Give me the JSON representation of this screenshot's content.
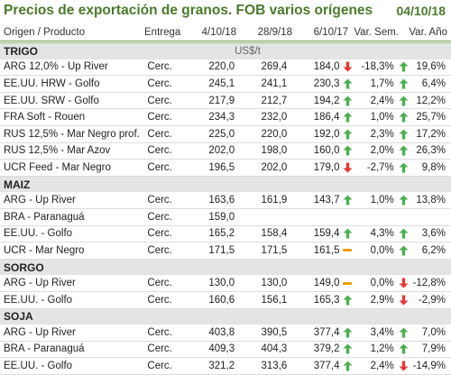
{
  "title": "Precios de exportación de granos. FOB varios orígenes",
  "date": "04/10/18",
  "headers": {
    "origen": "Origen / Producto",
    "entrega": "Entrega",
    "d1": "4/10/18",
    "d2": "28/9/18",
    "d3": "6/10/17",
    "sem": "Var. Sem.",
    "anio": "Var. Año"
  },
  "unit": "US$/t",
  "colors": {
    "up": "#4caf50",
    "down": "#e53935",
    "flat": "#e8a000",
    "accent": "#4a7a2c"
  },
  "sections": [
    {
      "name": "TRIGO",
      "rows": [
        {
          "name": "ARG 12,0% - Up River",
          "entrega": "Cerc.",
          "d1": "220,0",
          "d2": "269,4",
          "d3": "184,0",
          "i1": "down",
          "sem": "-18,3%",
          "i2": "up",
          "anio": "19,6%"
        },
        {
          "name": "EE.UU. HRW - Golfo",
          "entrega": "Cerc.",
          "d1": "245,1",
          "d2": "241,1",
          "d3": "230,3",
          "i1": "up",
          "sem": "1,7%",
          "i2": "up",
          "anio": "6,4%"
        },
        {
          "name": "EE.UU. SRW - Golfo",
          "entrega": "Cerc.",
          "d1": "217,9",
          "d2": "212,7",
          "d3": "194,2",
          "i1": "up",
          "sem": "2,4%",
          "i2": "up",
          "anio": "12,2%"
        },
        {
          "name": "FRA Soft - Rouen",
          "entrega": "Cerc.",
          "d1": "234,3",
          "d2": "232,0",
          "d3": "186,4",
          "i1": "up",
          "sem": "1,0%",
          "i2": "up",
          "anio": "25,7%"
        },
        {
          "name": "RUS 12,5% - Mar Negro prof.",
          "entrega": "Cerc.",
          "d1": "225,0",
          "d2": "220,0",
          "d3": "192,0",
          "i1": "up",
          "sem": "2,3%",
          "i2": "up",
          "anio": "17,2%"
        },
        {
          "name": "RUS 12,5% - Mar Azov",
          "entrega": "Cerc.",
          "d1": "202,0",
          "d2": "198,0",
          "d3": "160,0",
          "i1": "up",
          "sem": "2,0%",
          "i2": "up",
          "anio": "26,3%"
        },
        {
          "name": "UCR Feed - Mar Negro",
          "entrega": "Cerc.",
          "d1": "196,5",
          "d2": "202,0",
          "d3": "179,0",
          "i1": "down",
          "sem": "-2,7%",
          "i2": "up",
          "anio": "9,8%"
        }
      ]
    },
    {
      "name": "MAIZ",
      "rows": [
        {
          "name": "ARG - Up River",
          "entrega": "Cerc.",
          "d1": "163,6",
          "d2": "161,9",
          "d3": "143,7",
          "i1": "up",
          "sem": "1,0%",
          "i2": "up",
          "anio": "13,8%"
        },
        {
          "name": "BRA - Paranaguá",
          "entrega": "Cerc.",
          "d1": "159,0",
          "d2": "",
          "d3": "",
          "i1": "",
          "sem": "",
          "i2": "",
          "anio": ""
        },
        {
          "name": "EE.UU. - Golfo",
          "entrega": "Cerc.",
          "d1": "165,2",
          "d2": "158,4",
          "d3": "159,4",
          "i1": "up",
          "sem": "4,3%",
          "i2": "up",
          "anio": "3,6%"
        },
        {
          "name": "UCR - Mar Negro",
          "entrega": "Cerc.",
          "d1": "171,5",
          "d2": "171,5",
          "d3": "161,5",
          "i1": "flat",
          "sem": "0,0%",
          "i2": "up",
          "anio": "6,2%"
        }
      ]
    },
    {
      "name": "SORGO",
      "rows": [
        {
          "name": "ARG - Up River",
          "entrega": "Cerc.",
          "d1": "130,0",
          "d2": "130,0",
          "d3": "149,0",
          "i1": "flat",
          "sem": "0,0%",
          "i2": "down",
          "anio": "-12,8%"
        },
        {
          "name": "EE.UU. - Golfo",
          "entrega": "Cerc.",
          "d1": "160,6",
          "d2": "156,1",
          "d3": "165,3",
          "i1": "up",
          "sem": "2,9%",
          "i2": "down",
          "anio": "-2,9%"
        }
      ]
    },
    {
      "name": "SOJA",
      "rows": [
        {
          "name": "ARG - Up River",
          "entrega": "Cerc.",
          "d1": "403,8",
          "d2": "390,5",
          "d3": "377,4",
          "i1": "up",
          "sem": "3,4%",
          "i2": "up",
          "anio": "7,0%"
        },
        {
          "name": "BRA - Paranaguá",
          "entrega": "Cerc.",
          "d1": "409,3",
          "d2": "404,3",
          "d3": "379,2",
          "i1": "up",
          "sem": "1,2%",
          "i2": "up",
          "anio": "7,9%"
        },
        {
          "name": "EE.UU. - Golfo",
          "entrega": "Cerc.",
          "d1": "321,2",
          "d2": "313,6",
          "d3": "377,4",
          "i1": "up",
          "sem": "2,4%",
          "i2": "down",
          "anio": "-14,9%"
        }
      ]
    }
  ]
}
